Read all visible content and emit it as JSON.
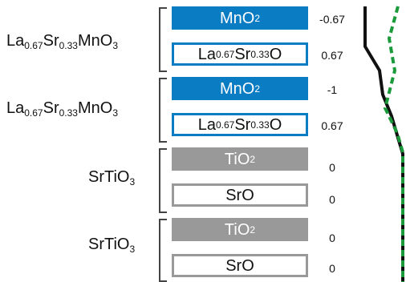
{
  "groups": [
    {
      "base": "La",
      "s1": "0.67",
      "m1": "Sr",
      "s2": "0.33",
      "m2": "MnO",
      "s3": "3"
    },
    {
      "base": "La",
      "s1": "0.67",
      "m1": "Sr",
      "s2": "0.33",
      "m2": "MnO",
      "s3": "3"
    },
    {
      "base": "SrTiO",
      "s1": "3"
    },
    {
      "base": "SrTiO",
      "s1": "3"
    }
  ],
  "layers": [
    {
      "parts": [
        "MnO",
        "2"
      ],
      "charge": "-0.67",
      "style": "blue"
    },
    {
      "parts": [
        "La",
        "0.67",
        "Sr",
        "0.33",
        "O"
      ],
      "charge": "0.67",
      "style": "blue-outline"
    },
    {
      "parts": [
        "MnO",
        "2"
      ],
      "charge": "-1",
      "style": "blue"
    },
    {
      "parts": [
        "La",
        "0.67",
        "Sr",
        "0.33",
        "O"
      ],
      "charge": "0.67",
      "style": "blue-outline"
    },
    {
      "parts": [
        "TiO",
        "2"
      ],
      "charge": "0",
      "style": "gray"
    },
    {
      "parts": [
        "SrO"
      ],
      "charge": "0",
      "style": "gray-outline"
    },
    {
      "parts": [
        "TiO",
        "2"
      ],
      "charge": "0",
      "style": "gray"
    },
    {
      "parts": [
        "SrO"
      ],
      "charge": "0",
      "style": "gray-outline"
    }
  ],
  "colors": {
    "manganite": "#0a7cc4",
    "titanate": "#999999",
    "line_solid": "#111111",
    "line_dashed": "#1a9a3a"
  }
}
